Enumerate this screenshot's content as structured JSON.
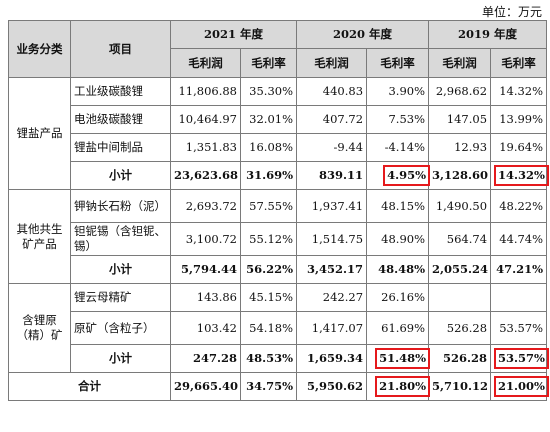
{
  "unit": "单位：万元",
  "headers": {
    "category": "业务分类",
    "item": "项目",
    "years": [
      "2021 年度",
      "2020 年度",
      "2019 年度"
    ],
    "gross_profit": "毛利润",
    "margin": "毛利率"
  },
  "groups": [
    {
      "category": "锂盐产品",
      "rows": [
        {
          "item": "工业级碳酸锂",
          "v": [
            "11,806.88",
            "35.30%",
            "440.83",
            "3.90%",
            "2,968.62",
            "14.32%"
          ]
        },
        {
          "item": "电池级碳酸锂",
          "v": [
            "10,464.97",
            "32.01%",
            "407.72",
            "7.53%",
            "147.05",
            "13.99%"
          ]
        },
        {
          "item": "锂盐中间制品",
          "v": [
            "1,351.83",
            "16.08%",
            "-9.44",
            "-4.14%",
            "12.93",
            "19.64%"
          ]
        }
      ],
      "subtotal": {
        "label": "小计",
        "v": [
          "23,623.68",
          "31.69%",
          "839.11",
          "4.95%",
          "3,128.60",
          "14.32%"
        ]
      }
    },
    {
      "category": "其他共生矿产品",
      "rows": [
        {
          "item": "钾钠长石粉（泥）",
          "v": [
            "2,693.72",
            "57.55%",
            "1,937.41",
            "48.15%",
            "1,490.50",
            "48.22%"
          ]
        },
        {
          "item": "钽铌锡（含钽铌、锡）",
          "v": [
            "3,100.72",
            "55.12%",
            "1,514.75",
            "48.90%",
            "564.74",
            "44.74%"
          ]
        }
      ],
      "subtotal": {
        "label": "小计",
        "v": [
          "5,794.44",
          "56.22%",
          "3,452.17",
          "48.48%",
          "2,055.24",
          "47.21%"
        ]
      }
    },
    {
      "category": "含锂原（精）矿",
      "rows": [
        {
          "item": "锂云母精矿",
          "v": [
            "143.86",
            "45.15%",
            "242.27",
            "26.16%",
            "",
            ""
          ]
        },
        {
          "item": "原矿（含粒子）",
          "v": [
            "103.42",
            "54.18%",
            "1,417.07",
            "61.69%",
            "526.28",
            "53.57%"
          ]
        }
      ],
      "subtotal": {
        "label": "小计",
        "v": [
          "247.28",
          "48.53%",
          "1,659.34",
          "51.48%",
          "526.28",
          "53.57%"
        ]
      }
    }
  ],
  "total": {
    "label": "合计",
    "v": [
      "29,665.40",
      "34.75%",
      "5,950.62",
      "21.80%",
      "5,710.12",
      "21.00%"
    ]
  },
  "highlight_color": "#e5191c"
}
